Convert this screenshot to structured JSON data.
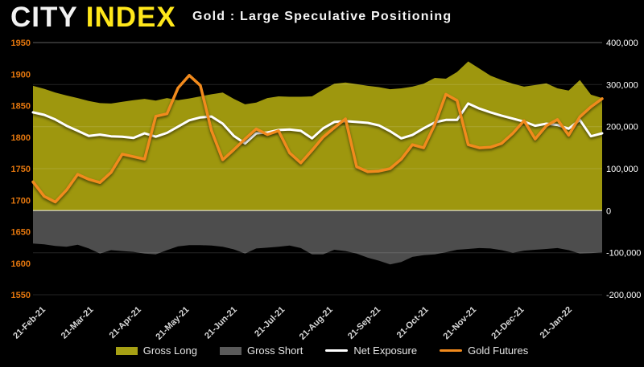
{
  "header": {
    "logo_city": "CITY",
    "logo_index": "INDEX",
    "title": "Gold : Large Speculative Positioning"
  },
  "colors": {
    "background": "#000000",
    "logo_yellow": "#ffe71a",
    "left_axis_label": "#e5770e",
    "right_axis_label": "#ffffff",
    "x_axis_label": "#d8d8d8",
    "gross_long": "#9e970e",
    "gross_short": "#4d4d4d",
    "net_exposure": "#ffffff",
    "gold_futures": "#f18a1d"
  },
  "chart_data": {
    "type": "area",
    "title": "Gold : Large Speculative Positioning",
    "grid": "on",
    "legend_position": "bottom",
    "categories": [
      "21-Feb-21",
      "21-Mar-21",
      "21-Apr-21",
      "21-May-21",
      "21-Jun-21",
      "21-Jul-21",
      "21-Aug-21",
      "21-Sep-21",
      "21-Oct-21",
      "21-Nov-21",
      "21-Dec-21",
      "21-Jan-22"
    ],
    "x_note": "weekly observations; month tick labels shown",
    "left_axis": {
      "min": 1550,
      "max": 1950,
      "ticks": [
        {
          "label": "1950",
          "value": 1950
        },
        {
          "label": "1900",
          "value": 1900
        },
        {
          "label": "1850",
          "value": 1850
        },
        {
          "label": "1800",
          "value": 1800
        },
        {
          "label": "1750",
          "value": 1750
        },
        {
          "label": "1700",
          "value": 1700
        },
        {
          "label": "1650",
          "value": 1650
        },
        {
          "label": "1600",
          "value": 1600
        },
        {
          "label": "1550",
          "value": 1550
        }
      ]
    },
    "right_axis": {
      "min": -200000,
      "max": 400000,
      "ticks": [
        {
          "label": "400,000",
          "value": 400000
        },
        {
          "label": "300,000",
          "value": 300000
        },
        {
          "label": "200,000",
          "value": 200000
        },
        {
          "label": "100,000",
          "value": 100000
        },
        {
          "label": "0",
          "value": 0
        },
        {
          "label": "-100,000",
          "value": -100000
        },
        {
          "label": "-200,000",
          "value": -200000
        }
      ]
    },
    "series": [
      {
        "name": "Gross Long",
        "type": "area",
        "axis": "right",
        "color": "#9e970e",
        "values": [
          297000,
          290000,
          281000,
          274000,
          268000,
          261000,
          256000,
          255000,
          259000,
          263000,
          266000,
          262000,
          268000,
          263000,
          267000,
          272000,
          277000,
          281000,
          266000,
          253000,
          257000,
          268000,
          272000,
          271000,
          271000,
          272000,
          288000,
          302000,
          305000,
          301000,
          297000,
          294000,
          289000,
          291000,
          295000,
          302000,
          316000,
          314000,
          330000,
          355000,
          338000,
          321000,
          311000,
          302000,
          295000,
          299000,
          303000,
          291000,
          286000,
          311000,
          276000,
          268000
        ]
      },
      {
        "name": "Gross Short",
        "type": "area",
        "axis": "right",
        "color": "#4d4d4d",
        "values": [
          -78000,
          -80000,
          -84000,
          -86000,
          -81000,
          -90000,
          -102000,
          -94000,
          -96000,
          -98000,
          -102000,
          -104000,
          -94000,
          -85000,
          -82000,
          -82000,
          -83000,
          -86000,
          -92000,
          -102000,
          -90000,
          -88000,
          -86000,
          -83000,
          -89000,
          -104000,
          -104000,
          -93000,
          -96000,
          -102000,
          -112000,
          -119000,
          -128000,
          -122000,
          -110000,
          -106000,
          -104000,
          -99000,
          -93000,
          -91000,
          -89000,
          -90000,
          -94000,
          -100000,
          -95000,
          -93000,
          -91000,
          -89000,
          -94000,
          -102000,
          -101000,
          -99000
        ]
      },
      {
        "name": "Net Exposure",
        "type": "line",
        "axis": "right",
        "color": "#ffffff",
        "width": 3,
        "values": [
          234000,
          228000,
          217000,
          202000,
          190000,
          178000,
          181000,
          177000,
          176000,
          173000,
          184000,
          176000,
          185000,
          200000,
          215000,
          222000,
          224000,
          207000,
          178000,
          160000,
          184000,
          186000,
          192000,
          193000,
          190000,
          172000,
          196000,
          211000,
          213000,
          211000,
          209000,
          203000,
          189000,
          172000,
          180000,
          196000,
          210000,
          216000,
          216000,
          255000,
          243000,
          234000,
          226000,
          219000,
          212000,
          202000,
          207000,
          204000,
          195000,
          216000,
          177000,
          184000
        ]
      },
      {
        "name": "Gold Futures",
        "type": "line",
        "axis": "left",
        "color": "#f18a1d",
        "width": 3.5,
        "values": [
          1729,
          1706,
          1697,
          1716,
          1741,
          1733,
          1728,
          1744,
          1773,
          1769,
          1765,
          1833,
          1837,
          1878,
          1898,
          1882,
          1810,
          1764,
          1780,
          1797,
          1813,
          1804,
          1810,
          1775,
          1759,
          1779,
          1800,
          1815,
          1829,
          1753,
          1745,
          1746,
          1750,
          1765,
          1788,
          1783,
          1820,
          1868,
          1858,
          1788,
          1783,
          1784,
          1790,
          1806,
          1826,
          1797,
          1818,
          1828,
          1803,
          1832,
          1848,
          1861
        ]
      }
    ]
  },
  "legend": {
    "items": [
      {
        "label": "Gross Long",
        "color": "#a6a014",
        "kind": "area"
      },
      {
        "label": "Gross Short",
        "color": "#5a5a5a",
        "kind": "area"
      },
      {
        "label": "Net Exposure",
        "color": "#ffffff",
        "kind": "line"
      },
      {
        "label": "Gold Futures",
        "color": "#f18a1d",
        "kind": "line"
      }
    ]
  }
}
